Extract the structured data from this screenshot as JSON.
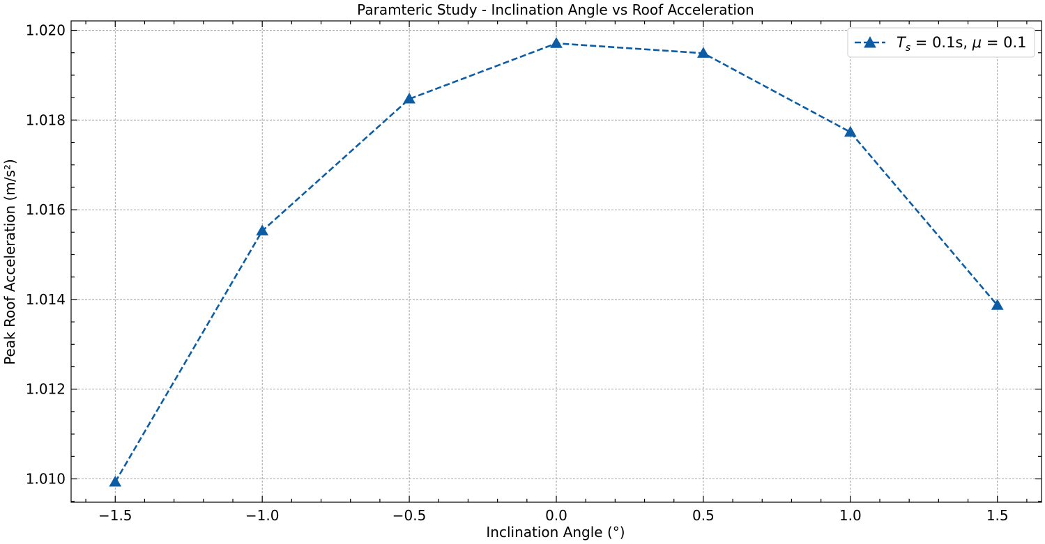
{
  "chart_data": {
    "type": "line",
    "title": "Paramteric Study - Inclination Angle vs Roof Acceleration",
    "xlabel": "Inclination Angle (°)",
    "ylabel": "Peak Roof Acceleration (m/s²)",
    "xlim": [
      -1.65,
      1.65
    ],
    "ylim": [
      1.00948,
      1.02021
    ],
    "xticks": [
      -1.5,
      -1.0,
      -0.5,
      0.0,
      0.5,
      1.0,
      1.5
    ],
    "xtick_labels": [
      "−1.5",
      "−1.0",
      "−0.5",
      "0.0",
      "0.5",
      "1.0",
      "1.5"
    ],
    "yticks": [
      1.01,
      1.012,
      1.014,
      1.016,
      1.018,
      1.02
    ],
    "ytick_labels": [
      "1.010",
      "1.012",
      "1.014",
      "1.016",
      "1.018",
      "1.020"
    ],
    "grid": true,
    "legend_position": "top-right",
    "series": [
      {
        "legend_parts": [
          "T",
          "s",
          " = 0.1s, ",
          "μ",
          " = 0.1"
        ],
        "color": "#0C5DA5",
        "linestyle": "dashed",
        "marker": "triangle-up",
        "x": [
          -1.5,
          -1.0,
          -0.5,
          0.0,
          0.5,
          1.0,
          1.5
        ],
        "y": [
          1.00993,
          1.01553,
          1.01847,
          1.01971,
          1.01949,
          1.01773,
          1.01387
        ]
      }
    ]
  }
}
